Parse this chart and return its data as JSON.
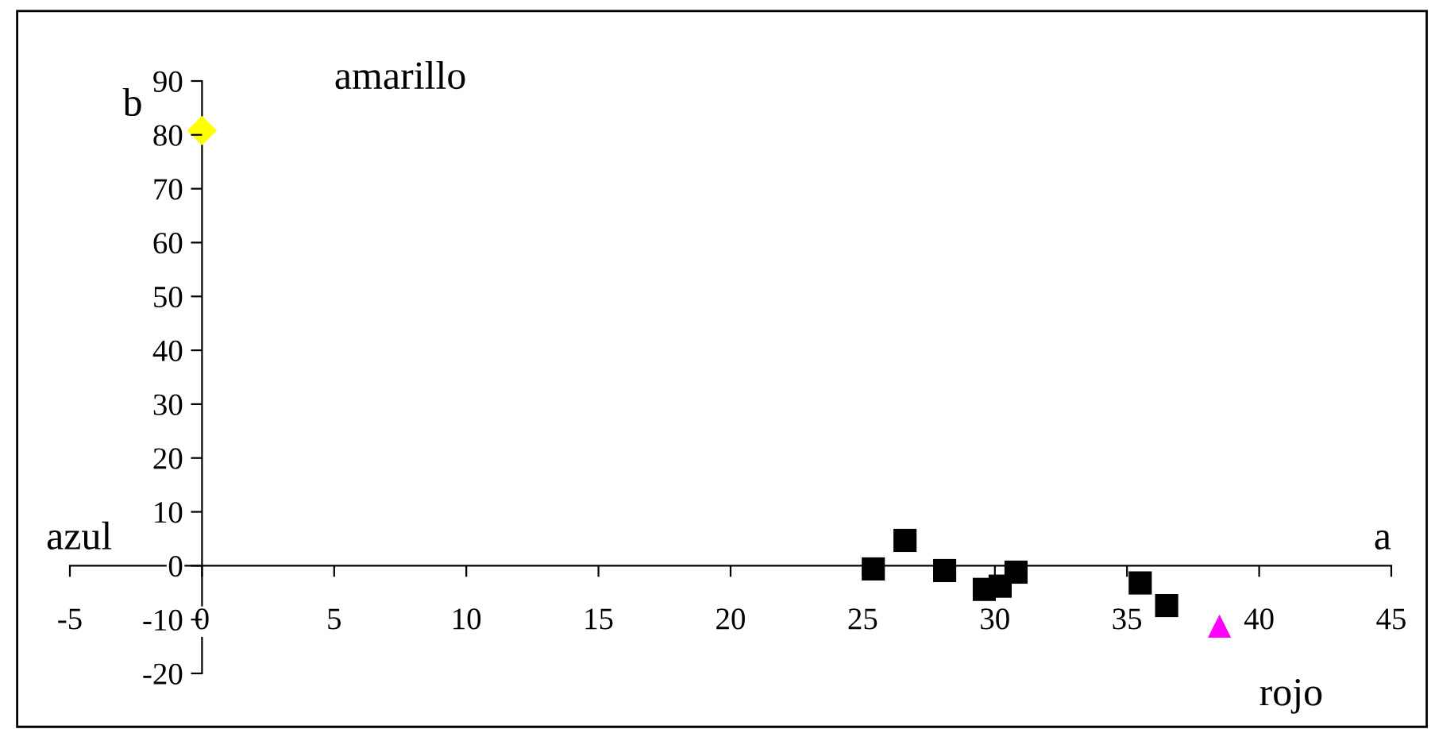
{
  "chart_data": {
    "type": "scatter",
    "xlabel": "a",
    "ylabel": "b",
    "xlim": [
      -5,
      45
    ],
    "xticks": [
      -5,
      0,
      5,
      10,
      15,
      20,
      25,
      30,
      35,
      40,
      45
    ],
    "ylim": [
      -20,
      90
    ],
    "yticks": [
      -20,
      -10,
      0,
      10,
      20,
      30,
      40,
      50,
      60,
      70,
      80,
      90
    ],
    "grid": false,
    "legend": false,
    "series": [
      {
        "color": "#000000",
        "marker": "square",
        "x": [
          25.4,
          26.6,
          28.1,
          29.6,
          30.2,
          30.8,
          35.5,
          36.5
        ],
        "values": [
          -0.6,
          4.7,
          -0.9,
          -4.4,
          -3.8,
          -1.2,
          -3.2,
          -7.4
        ]
      },
      {
        "color": "#ff00ff",
        "marker": "triangle",
        "x": [
          38.5
        ],
        "values": [
          -11.2
        ]
      },
      {
        "color": "#ffff00",
        "marker": "diamond",
        "x": [
          0
        ],
        "values": [
          80.8
        ]
      }
    ],
    "annotations": [
      "amarillo",
      "azul",
      "rojo"
    ]
  }
}
